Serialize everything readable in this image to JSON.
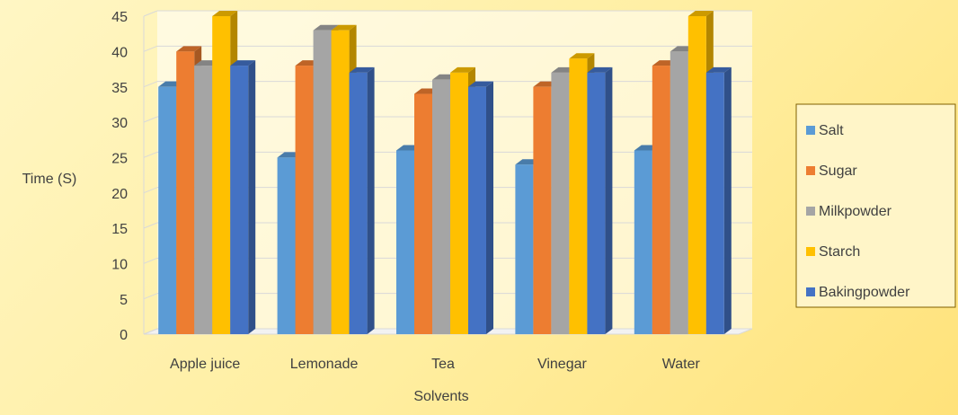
{
  "chart_data": {
    "type": "bar3d",
    "categories": [
      "Apple juice",
      "Lemonade",
      "Tea",
      "Vinegar",
      "Water"
    ],
    "series": [
      {
        "name": "Salt",
        "color": "#5b9bd5",
        "values": [
          35,
          25,
          26,
          24,
          26
        ]
      },
      {
        "name": "Sugar",
        "color": "#ed7d31",
        "values": [
          40,
          38,
          34,
          35,
          38
        ]
      },
      {
        "name": "Milkpowder",
        "color": "#a5a5a5",
        "values": [
          38,
          43,
          36,
          37,
          40
        ]
      },
      {
        "name": "Starch",
        "color": "#ffc000",
        "values": [
          45,
          43,
          37,
          39,
          45
        ]
      },
      {
        "name": "Bakingpowder",
        "color": "#4472c4",
        "values": [
          38,
          37,
          35,
          37,
          37
        ]
      }
    ],
    "ylabel": "Time (S)",
    "xlabel": "Solvents",
    "ylim": [
      0,
      45
    ],
    "yticks": [
      0,
      5,
      10,
      15,
      20,
      25,
      30,
      35,
      40,
      45
    ],
    "grid": true,
    "legend": "right"
  }
}
